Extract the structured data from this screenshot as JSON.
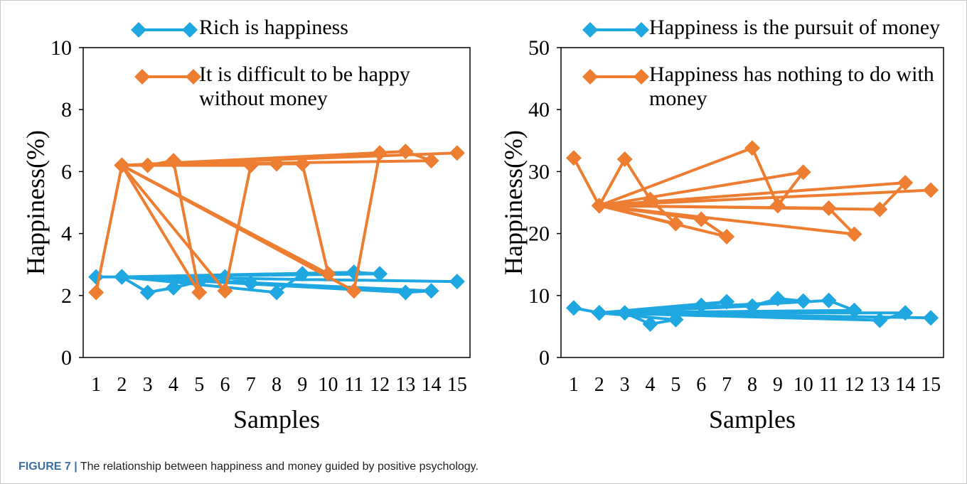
{
  "chart_data": [
    {
      "type": "line",
      "xlabel": "Samples",
      "ylabel": "Happiness(%)",
      "xlim": [
        0.5,
        15.5
      ],
      "xticks": [
        1,
        2,
        3,
        4,
        5,
        6,
        7,
        8,
        9,
        10,
        11,
        12,
        13,
        14,
        15
      ],
      "ylim": [
        0,
        10
      ],
      "yticks": [
        0,
        2,
        4,
        6,
        8,
        10
      ],
      "series": [
        {
          "name": "Rich is happiness",
          "color": "#1ea7e1",
          "x": [
            1,
            2,
            3,
            4,
            5,
            2,
            6,
            7,
            2,
            8,
            9,
            10,
            2,
            11,
            12,
            2,
            13,
            14,
            2,
            15
          ],
          "values": [
            2.6,
            2.6,
            2.1,
            2.25,
            2.45,
            2.6,
            2.6,
            2.4,
            2.6,
            2.1,
            2.7,
            2.7,
            2.6,
            2.75,
            2.7,
            2.6,
            2.1,
            2.15,
            2.6,
            2.45
          ]
        },
        {
          "name": "It is difficult to be happy without money",
          "color": "#ed7d31",
          "x": [
            1,
            2,
            3,
            4,
            5,
            2,
            6,
            7,
            2,
            8,
            9,
            10,
            2,
            11,
            12,
            2,
            13,
            14,
            2,
            15
          ],
          "values": [
            2.1,
            6.2,
            6.2,
            6.35,
            2.1,
            6.2,
            2.15,
            6.2,
            6.2,
            6.25,
            6.25,
            2.7,
            6.2,
            2.15,
            6.6,
            6.2,
            6.65,
            6.35,
            6.2,
            6.6
          ]
        }
      ]
    },
    {
      "type": "line",
      "xlabel": "Samples",
      "ylabel": "Happiness(%)",
      "xlim": [
        0.5,
        15.5
      ],
      "xticks": [
        1,
        2,
        3,
        4,
        5,
        6,
        7,
        8,
        9,
        10,
        11,
        12,
        13,
        14,
        15
      ],
      "ylim": [
        0,
        50
      ],
      "yticks": [
        0,
        10,
        20,
        30,
        40,
        50
      ],
      "series": [
        {
          "name": "Happiness is the pursuit of money",
          "color": "#1ea7e1",
          "x": [
            1,
            2,
            3,
            4,
            5,
            2,
            6,
            7,
            2,
            8,
            9,
            10,
            2,
            11,
            12,
            2,
            13,
            14,
            2,
            15
          ],
          "values": [
            8,
            7.2,
            7.2,
            5.4,
            6.1,
            7.2,
            8.4,
            9,
            7.2,
            8.3,
            9.5,
            9.1,
            7.2,
            9.2,
            7.6,
            7.2,
            6,
            7.2,
            7.2,
            6.4
          ]
        },
        {
          "name": "Happiness has nothing to do with money",
          "color": "#ed7d31",
          "x": [
            1,
            2,
            3,
            4,
            5,
            2,
            6,
            7,
            2,
            8,
            9,
            10,
            2,
            11,
            12,
            2,
            13,
            14,
            2,
            15
          ],
          "values": [
            32.2,
            24.5,
            32,
            25.5,
            21.6,
            24.5,
            22.3,
            19.5,
            24.5,
            33.8,
            24.5,
            29.9,
            24.5,
            24.1,
            19.9,
            24.5,
            23.9,
            28.2,
            24.5,
            27
          ]
        }
      ]
    }
  ],
  "caption": {
    "label": "FIGURE 7 |",
    "text": "The relationship between happiness and money guided by positive psychology."
  }
}
